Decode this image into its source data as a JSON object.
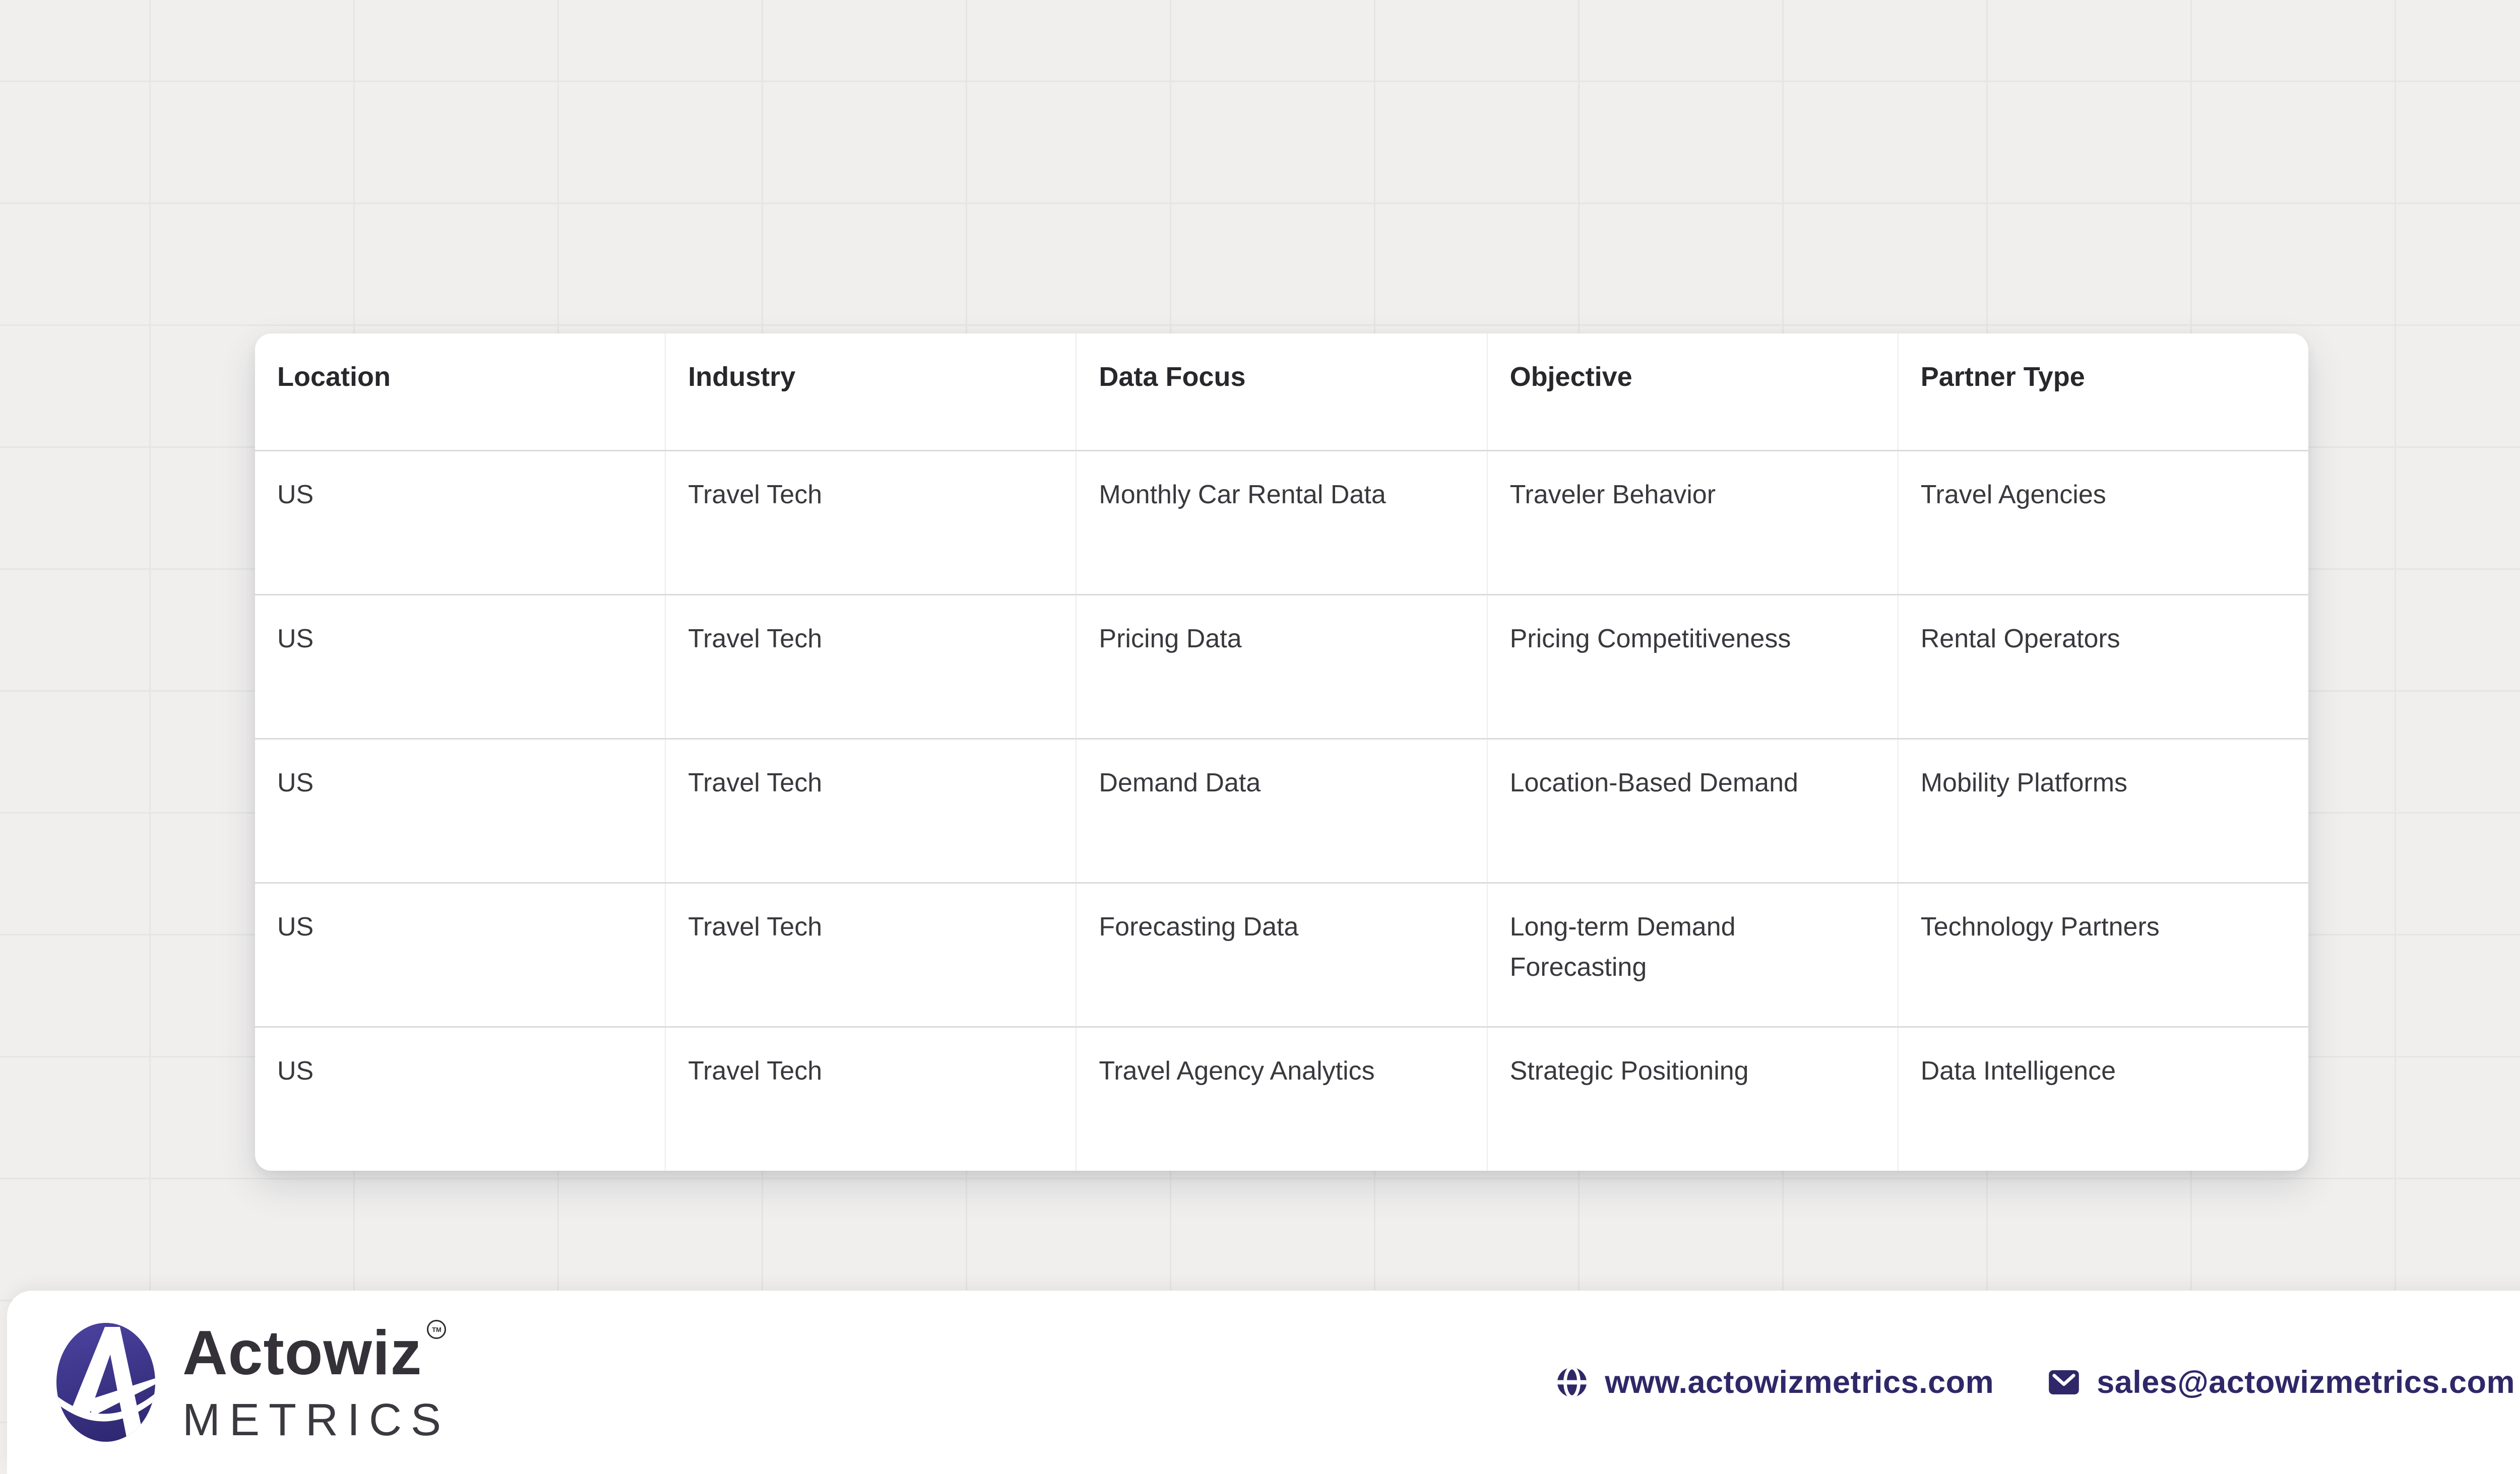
{
  "table": {
    "columns": [
      "Location",
      "Industry",
      "Data Focus",
      "Objective",
      "Partner Type"
    ],
    "rows": [
      [
        "US",
        "Travel Tech",
        "Monthly Car Rental Data",
        "Traveler Behavior",
        "Travel Agencies"
      ],
      [
        "US",
        "Travel Tech",
        "Pricing Data",
        "Pricing Competitiveness",
        "Rental Operators"
      ],
      [
        "US",
        "Travel Tech",
        "Demand Data",
        "Location-Based Demand",
        "Mobility Platforms"
      ],
      [
        "US",
        "Travel Tech",
        "Forecasting Data",
        "Long-term Demand\nForecasting",
        "Technology Partners"
      ],
      [
        "US",
        "Travel Tech",
        "Travel Agency Analytics",
        "Strategic Positioning",
        "Data Intelligence"
      ]
    ]
  },
  "chart_data": {
    "type": "table",
    "title": "",
    "columns": [
      "Location",
      "Industry",
      "Data Focus",
      "Objective",
      "Partner Type"
    ],
    "rows": [
      [
        "US",
        "Travel Tech",
        "Monthly Car Rental Data",
        "Traveler Behavior",
        "Travel Agencies"
      ],
      [
        "US",
        "Travel Tech",
        "Pricing Data",
        "Pricing Competitiveness",
        "Rental Operators"
      ],
      [
        "US",
        "Travel Tech",
        "Demand Data",
        "Location-Based Demand",
        "Mobility Platforms"
      ],
      [
        "US",
        "Travel Tech",
        "Forecasting Data",
        "Long-term Demand Forecasting",
        "Technology Partners"
      ],
      [
        "US",
        "Travel Tech",
        "Travel Agency Analytics",
        "Strategic Positioning",
        "Data Intelligence"
      ]
    ]
  },
  "footer": {
    "brand": {
      "name": "Actowiz",
      "tm": "TM",
      "subtitle": "METRICS",
      "logo_icon": "actowiz-a-swoosh-logo"
    },
    "website": {
      "icon": "globe-icon",
      "label": "www.actowizmetrics.com"
    },
    "email": {
      "icon": "mail-icon",
      "label": "sales@actowizmetrics.com"
    }
  },
  "colors": {
    "background": "#f0efee",
    "grid_line": "#e6e5e4",
    "card": "#ffffff",
    "header_text": "#28272c",
    "cell_text": "#39383d",
    "link": "#2e2768",
    "logo_gradient_start": "#4a419d",
    "logo_gradient_end": "#2e2871",
    "wordmark": "#343139"
  }
}
